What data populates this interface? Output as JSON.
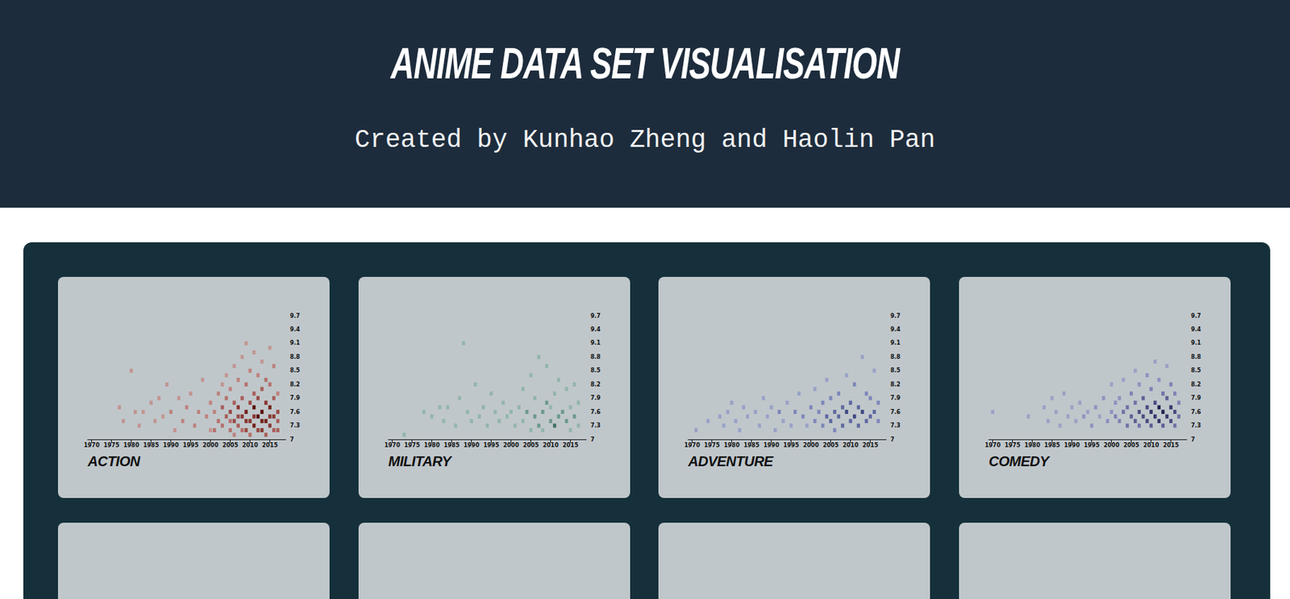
{
  "header": {
    "title": "ANIME DATA SET VISUALISATION",
    "subtitle": "Created by Kunhao Zheng and Haolin Pan"
  },
  "chart_data": [
    {
      "type": "heatmap",
      "title": "ACTION",
      "color": "#c8200e",
      "grid": false,
      "xlim": [
        1969,
        2019
      ],
      "xticks": [
        1970,
        1975,
        1980,
        1985,
        1990,
        1995,
        2000,
        2005,
        2010,
        2015
      ],
      "ylim": [
        7,
        9.7
      ],
      "yticks": [
        7,
        7.3,
        7.6,
        7.9,
        8.2,
        8.5,
        8.8,
        9.1,
        9.4,
        9.7
      ],
      "color_range": [
        1,
        8
      ],
      "cells": [
        [
          1977,
          7.7,
          1
        ],
        [
          1978,
          7.4,
          1
        ],
        [
          1980,
          8.5,
          1
        ],
        [
          1981,
          7.6,
          1
        ],
        [
          1982,
          7.3,
          1
        ],
        [
          1983,
          7.6,
          1
        ],
        [
          1985,
          7.8,
          1
        ],
        [
          1986,
          7.4,
          1
        ],
        [
          1987,
          7.9,
          1
        ],
        [
          1988,
          7.5,
          1
        ],
        [
          1989,
          8.2,
          1
        ],
        [
          1990,
          7.6,
          2
        ],
        [
          1991,
          7.2,
          1
        ],
        [
          1992,
          7.9,
          1
        ],
        [
          1993,
          7.4,
          2
        ],
        [
          1994,
          7.7,
          2
        ],
        [
          1995,
          8.0,
          1
        ],
        [
          1996,
          7.3,
          2
        ],
        [
          1997,
          7.6,
          2
        ],
        [
          1998,
          8.3,
          1
        ],
        [
          1999,
          7.5,
          2
        ],
        [
          2000,
          7.8,
          2
        ],
        [
          2000,
          7.2,
          1
        ],
        [
          2001,
          7.2,
          3
        ],
        [
          2001,
          7.6,
          2
        ],
        [
          2002,
          7.4,
          3
        ],
        [
          2002,
          8.0,
          2
        ],
        [
          2003,
          7.3,
          3
        ],
        [
          2003,
          7.7,
          4
        ],
        [
          2003,
          8.2,
          1
        ],
        [
          2004,
          7.5,
          4
        ],
        [
          2004,
          7.9,
          3
        ],
        [
          2004,
          8.4,
          1
        ],
        [
          2005,
          7.2,
          3
        ],
        [
          2005,
          7.6,
          5
        ],
        [
          2005,
          8.1,
          2
        ],
        [
          2005,
          7.4,
          3
        ],
        [
          2006,
          7.4,
          5
        ],
        [
          2006,
          7.8,
          4
        ],
        [
          2006,
          8.6,
          1
        ],
        [
          2006,
          7.1,
          2
        ],
        [
          2007,
          7.3,
          4
        ],
        [
          2007,
          7.7,
          6
        ],
        [
          2007,
          8.3,
          2
        ],
        [
          2007,
          7.5,
          5
        ],
        [
          2008,
          7.5,
          6
        ],
        [
          2008,
          7.9,
          4
        ],
        [
          2008,
          8.8,
          1
        ],
        [
          2008,
          7.2,
          3
        ],
        [
          2009,
          7.2,
          5
        ],
        [
          2009,
          7.6,
          7
        ],
        [
          2009,
          8.2,
          3
        ],
        [
          2009,
          9.1,
          1
        ],
        [
          2009,
          7.4,
          6
        ],
        [
          2010,
          7.4,
          6
        ],
        [
          2010,
          7.8,
          5
        ],
        [
          2010,
          8.5,
          2
        ],
        [
          2010,
          7.1,
          3
        ],
        [
          2011,
          7.3,
          7
        ],
        [
          2011,
          7.7,
          8
        ],
        [
          2011,
          8.0,
          4
        ],
        [
          2011,
          8.9,
          1
        ],
        [
          2011,
          7.5,
          6
        ],
        [
          2012,
          7.5,
          8
        ],
        [
          2012,
          7.9,
          5
        ],
        [
          2012,
          8.4,
          2
        ],
        [
          2012,
          7.2,
          5
        ],
        [
          2013,
          7.2,
          6
        ],
        [
          2013,
          7.6,
          8
        ],
        [
          2013,
          8.1,
          4
        ],
        [
          2013,
          8.7,
          1
        ],
        [
          2013,
          7.4,
          7
        ],
        [
          2014,
          7.4,
          7
        ],
        [
          2014,
          7.8,
          6
        ],
        [
          2014,
          8.3,
          3
        ],
        [
          2014,
          7.1,
          4
        ],
        [
          2015,
          7.3,
          6
        ],
        [
          2015,
          7.7,
          7
        ],
        [
          2015,
          8.2,
          3
        ],
        [
          2015,
          9.0,
          1
        ],
        [
          2015,
          7.5,
          6
        ],
        [
          2016,
          7.5,
          6
        ],
        [
          2016,
          7.9,
          4
        ],
        [
          2016,
          8.6,
          2
        ],
        [
          2016,
          7.2,
          4
        ],
        [
          2017,
          7.2,
          4
        ],
        [
          2017,
          7.6,
          5
        ],
        [
          2017,
          8.0,
          2
        ],
        [
          2017,
          7.4,
          4
        ]
      ]
    },
    {
      "type": "heatmap",
      "title": "MILITARY",
      "color": "#2a8a66",
      "grid": false,
      "xlim": [
        1969,
        2019
      ],
      "xticks": [
        1970,
        1975,
        1980,
        1985,
        1990,
        1995,
        2000,
        2005,
        2010,
        2015
      ],
      "ylim": [
        7,
        9.7
      ],
      "yticks": [
        7,
        7.3,
        7.6,
        7.9,
        8.2,
        8.5,
        8.8,
        9.1,
        9.4,
        9.7
      ],
      "color_range": [
        1,
        4
      ],
      "cells": [
        [
          1973,
          7.1,
          1
        ],
        [
          1978,
          7.6,
          1
        ],
        [
          1980,
          7.5,
          1
        ],
        [
          1982,
          7.7,
          1
        ],
        [
          1983,
          7.4,
          1
        ],
        [
          1984,
          7.7,
          1
        ],
        [
          1986,
          7.3,
          1
        ],
        [
          1987,
          7.9,
          1
        ],
        [
          1988,
          9.1,
          1
        ],
        [
          1989,
          7.6,
          1
        ],
        [
          1990,
          7.4,
          1
        ],
        [
          1991,
          8.2,
          1
        ],
        [
          1992,
          7.5,
          1
        ],
        [
          1993,
          7.7,
          1
        ],
        [
          1994,
          7.3,
          1
        ],
        [
          1995,
          8.0,
          1
        ],
        [
          1996,
          7.6,
          1
        ],
        [
          1997,
          7.4,
          1
        ],
        [
          1998,
          7.8,
          1
        ],
        [
          1999,
          7.5,
          1
        ],
        [
          2000,
          7.6,
          1
        ],
        [
          2001,
          7.3,
          1
        ],
        [
          2002,
          7.7,
          1
        ],
        [
          2003,
          8.1,
          1
        ],
        [
          2003,
          7.4,
          1
        ],
        [
          2004,
          7.6,
          2
        ],
        [
          2005,
          7.2,
          1
        ],
        [
          2005,
          8.4,
          1
        ],
        [
          2006,
          7.5,
          2
        ],
        [
          2006,
          7.9,
          1
        ],
        [
          2007,
          7.3,
          2
        ],
        [
          2007,
          8.8,
          1
        ],
        [
          2008,
          7.6,
          2
        ],
        [
          2008,
          7.2,
          1
        ],
        [
          2009,
          7.8,
          2
        ],
        [
          2009,
          8.6,
          1
        ],
        [
          2010,
          7.4,
          2
        ],
        [
          2010,
          7.7,
          1
        ],
        [
          2011,
          7.3,
          3
        ],
        [
          2011,
          8.0,
          1
        ],
        [
          2012,
          7.5,
          2
        ],
        [
          2012,
          8.3,
          1
        ],
        [
          2013,
          7.6,
          2
        ],
        [
          2014,
          7.4,
          2
        ],
        [
          2014,
          8.1,
          1
        ],
        [
          2015,
          7.7,
          1
        ],
        [
          2015,
          7.2,
          1
        ],
        [
          2016,
          7.5,
          2
        ],
        [
          2016,
          8.2,
          1
        ],
        [
          2017,
          7.3,
          1
        ],
        [
          2017,
          7.8,
          1
        ]
      ]
    },
    {
      "type": "heatmap",
      "title": "ADVENTURE",
      "color": "#3a4bc0",
      "grid": false,
      "xlim": [
        1969,
        2019
      ],
      "xticks": [
        1970,
        1975,
        1980,
        1985,
        1990,
        1995,
        2000,
        2005,
        2010,
        2015
      ],
      "ylim": [
        7,
        9.7
      ],
      "yticks": [
        7,
        7.3,
        7.6,
        7.9,
        8.2,
        8.5,
        8.8,
        9.1,
        9.4,
        9.7
      ],
      "color_range": [
        1,
        5
      ],
      "cells": [
        [
          1971,
          7.2,
          1
        ],
        [
          1974,
          7.4,
          1
        ],
        [
          1977,
          7.5,
          1
        ],
        [
          1978,
          7.3,
          1
        ],
        [
          1979,
          7.6,
          1
        ],
        [
          1980,
          7.8,
          1
        ],
        [
          1981,
          7.4,
          1
        ],
        [
          1982,
          7.2,
          1
        ],
        [
          1983,
          7.7,
          1
        ],
        [
          1984,
          7.5,
          1
        ],
        [
          1986,
          7.6,
          1
        ],
        [
          1987,
          7.3,
          1
        ],
        [
          1988,
          7.9,
          1
        ],
        [
          1989,
          7.5,
          1
        ],
        [
          1990,
          7.7,
          1
        ],
        [
          1991,
          7.2,
          1
        ],
        [
          1992,
          7.6,
          2
        ],
        [
          1993,
          7.4,
          1
        ],
        [
          1994,
          7.8,
          1
        ],
        [
          1995,
          7.3,
          1
        ],
        [
          1996,
          7.6,
          2
        ],
        [
          1997,
          8.0,
          1
        ],
        [
          1998,
          7.5,
          2
        ],
        [
          1999,
          7.3,
          1
        ],
        [
          2000,
          7.7,
          2
        ],
        [
          2001,
          7.4,
          2
        ],
        [
          2001,
          8.1,
          1
        ],
        [
          2002,
          7.6,
          2
        ],
        [
          2003,
          7.3,
          2
        ],
        [
          2003,
          7.8,
          2
        ],
        [
          2004,
          7.5,
          3
        ],
        [
          2004,
          8.3,
          1
        ],
        [
          2005,
          7.4,
          3
        ],
        [
          2005,
          7.9,
          2
        ],
        [
          2006,
          7.6,
          3
        ],
        [
          2006,
          7.2,
          2
        ],
        [
          2007,
          7.5,
          3
        ],
        [
          2007,
          8.0,
          2
        ],
        [
          2008,
          7.3,
          3
        ],
        [
          2008,
          7.7,
          3
        ],
        [
          2009,
          7.6,
          4
        ],
        [
          2009,
          8.4,
          1
        ],
        [
          2010,
          7.4,
          3
        ],
        [
          2010,
          7.8,
          3
        ],
        [
          2011,
          7.5,
          4
        ],
        [
          2011,
          8.2,
          2
        ],
        [
          2012,
          7.3,
          3
        ],
        [
          2012,
          7.7,
          3
        ],
        [
          2013,
          7.6,
          4
        ],
        [
          2013,
          8.8,
          1
        ],
        [
          2014,
          7.4,
          3
        ],
        [
          2014,
          8.0,
          2
        ],
        [
          2015,
          7.5,
          3
        ],
        [
          2015,
          7.9,
          2
        ],
        [
          2016,
          7.6,
          3
        ],
        [
          2016,
          8.5,
          1
        ],
        [
          2017,
          7.4,
          2
        ],
        [
          2017,
          7.8,
          2
        ]
      ]
    },
    {
      "type": "heatmap",
      "title": "COMEDY",
      "color": "#4a4ab8",
      "grid": false,
      "xlim": [
        1969,
        2019
      ],
      "xticks": [
        1970,
        1975,
        1980,
        1985,
        1990,
        1995,
        2000,
        2005,
        2010,
        2015
      ],
      "ylim": [
        7,
        9.7
      ],
      "yticks": [
        7,
        7.3,
        7.6,
        7.9,
        8.2,
        8.5,
        8.8,
        9.1,
        9.4,
        9.7
      ],
      "color_range": [
        1,
        8
      ],
      "cells": [
        [
          1970,
          7.6,
          1
        ],
        [
          1979,
          7.5,
          1
        ],
        [
          1983,
          7.7,
          1
        ],
        [
          1984,
          7.4,
          1
        ],
        [
          1985,
          7.9,
          1
        ],
        [
          1986,
          7.6,
          1
        ],
        [
          1987,
          7.3,
          1
        ],
        [
          1988,
          8.0,
          1
        ],
        [
          1989,
          7.5,
          1
        ],
        [
          1990,
          7.7,
          1
        ],
        [
          1991,
          7.4,
          1
        ],
        [
          1992,
          7.8,
          1
        ],
        [
          1993,
          7.5,
          2
        ],
        [
          1994,
          7.6,
          1
        ],
        [
          1995,
          7.3,
          2
        ],
        [
          1996,
          7.7,
          2
        ],
        [
          1997,
          7.5,
          1
        ],
        [
          1998,
          7.9,
          2
        ],
        [
          1999,
          7.4,
          2
        ],
        [
          2000,
          7.6,
          2
        ],
        [
          2000,
          8.2,
          1
        ],
        [
          2001,
          7.5,
          3
        ],
        [
          2001,
          7.8,
          2
        ],
        [
          2002,
          7.4,
          3
        ],
        [
          2002,
          7.9,
          2
        ],
        [
          2003,
          7.6,
          4
        ],
        [
          2003,
          8.3,
          1
        ],
        [
          2004,
          7.3,
          4
        ],
        [
          2004,
          7.7,
          4
        ],
        [
          2005,
          7.5,
          5
        ],
        [
          2005,
          8.0,
          3
        ],
        [
          2006,
          7.4,
          5
        ],
        [
          2006,
          7.8,
          4
        ],
        [
          2006,
          8.5,
          1
        ],
        [
          2007,
          7.6,
          6
        ],
        [
          2007,
          7.3,
          4
        ],
        [
          2007,
          8.2,
          2
        ],
        [
          2008,
          7.5,
          6
        ],
        [
          2008,
          7.9,
          5
        ],
        [
          2009,
          7.4,
          6
        ],
        [
          2009,
          7.7,
          6
        ],
        [
          2009,
          8.4,
          2
        ],
        [
          2010,
          7.6,
          7
        ],
        [
          2010,
          7.3,
          5
        ],
        [
          2010,
          8.1,
          3
        ],
        [
          2011,
          7.5,
          7
        ],
        [
          2011,
          7.8,
          6
        ],
        [
          2011,
          8.7,
          1
        ],
        [
          2012,
          7.4,
          7
        ],
        [
          2012,
          7.7,
          8
        ],
        [
          2012,
          8.3,
          2
        ],
        [
          2013,
          7.6,
          8
        ],
        [
          2013,
          7.3,
          5
        ],
        [
          2013,
          8.0,
          4
        ],
        [
          2014,
          7.5,
          7
        ],
        [
          2014,
          7.9,
          5
        ],
        [
          2014,
          8.6,
          1
        ],
        [
          2015,
          7.4,
          6
        ],
        [
          2015,
          7.7,
          7
        ],
        [
          2015,
          8.2,
          3
        ],
        [
          2016,
          7.6,
          6
        ],
        [
          2016,
          7.3,
          4
        ],
        [
          2016,
          8.0,
          3
        ],
        [
          2017,
          7.5,
          4
        ],
        [
          2017,
          7.8,
          3
        ]
      ]
    }
  ]
}
